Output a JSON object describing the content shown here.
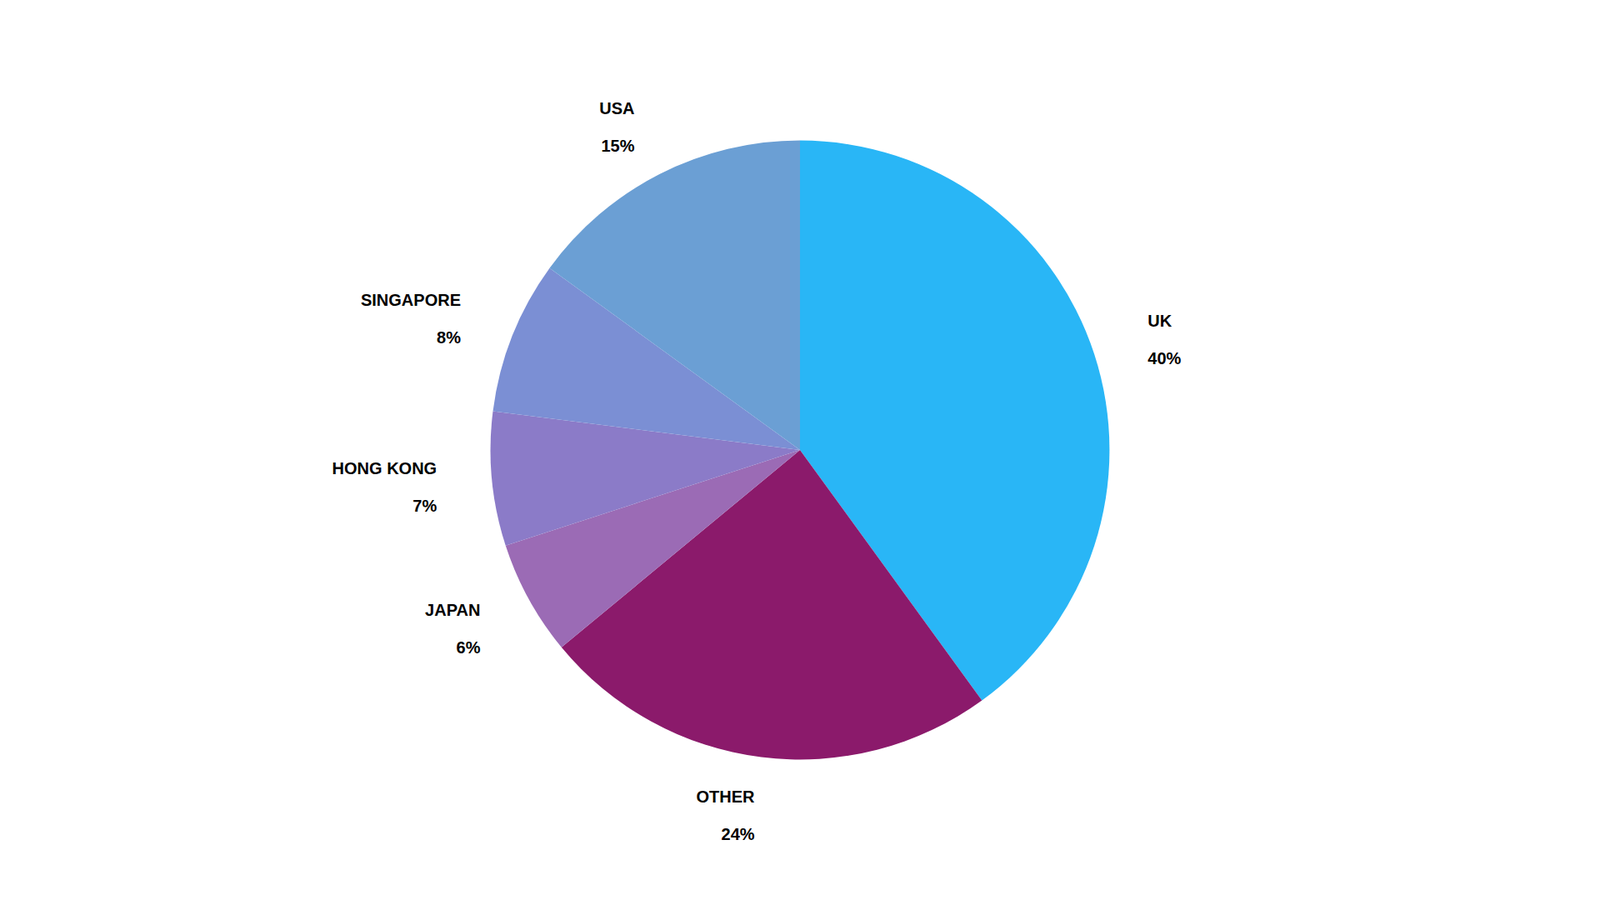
{
  "chart_data": {
    "type": "pie",
    "categories": [
      "UK",
      "OTHER",
      "JAPAN",
      "HONG KONG",
      "SINGAPORE",
      "USA"
    ],
    "values": [
      40,
      24,
      6,
      7,
      8,
      15
    ],
    "value_labels": [
      "40%",
      "24%",
      "6%",
      "7%",
      "8%",
      "15%"
    ],
    "colors": [
      "#29B6F6",
      "#8B1A6B",
      "#9B6BB5",
      "#8B7BC8",
      "#7B8FD4",
      "#6B9FD4"
    ],
    "data_labels": true
  }
}
